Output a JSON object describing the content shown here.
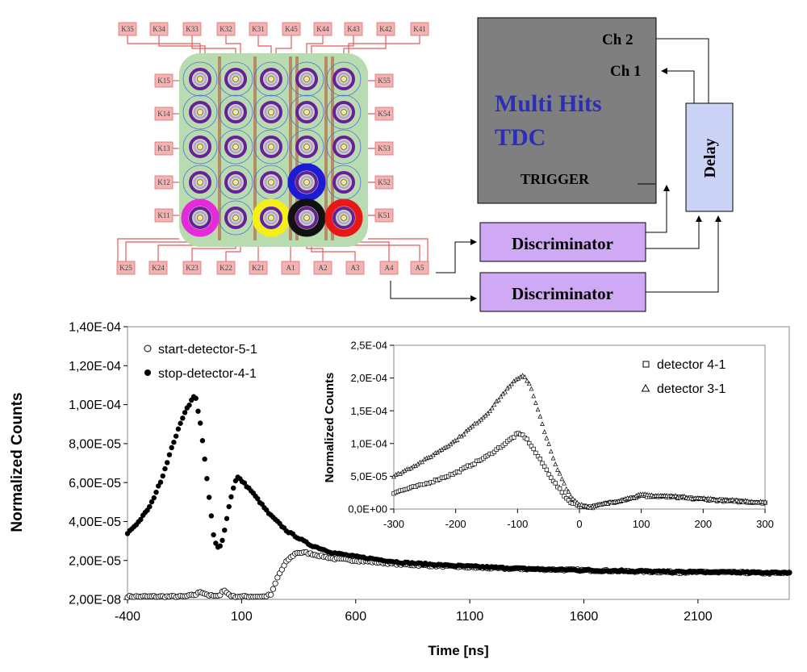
{
  "colors": {
    "pad": "#f2b3b3",
    "pad_stroke": "#e07070",
    "wire": "#e35b5b",
    "board": "#b9dbb0",
    "tdc_fill": "#7f7f7f",
    "tdc_text": "#2b2fb8",
    "disc_fill": "#cfa9f3",
    "delay_fill": "#cbd3f6",
    "magenta": "#e52ad9",
    "yellow": "#f4ef14",
    "black": "#111111",
    "red": "#e81818",
    "blue": "#1c1cd4"
  },
  "detector_array": {
    "top_pads": [
      "K35",
      "K34",
      "K33",
      "K32",
      "K31",
      "K45",
      "K44",
      "K43",
      "K42",
      "K41"
    ],
    "left_pads": [
      "K15",
      "K14",
      "K13",
      "K12",
      "K11"
    ],
    "right_pads": [
      "K55",
      "K54",
      "K53",
      "K52",
      "K51"
    ],
    "bottom_pads": [
      "K25",
      "K24",
      "K23",
      "K22",
      "K21",
      "A1",
      "A2",
      "A3",
      "A4",
      "A5"
    ]
  },
  "electronics": {
    "tdc_title_line1": "Multi Hits",
    "tdc_title_line2": "TDC",
    "ch2": "Ch 2",
    "ch1": "Ch 1",
    "trigger": "TRIGGER",
    "delay": "Delay",
    "discriminator_top": "Discriminator",
    "discriminator_bottom": "Discriminator"
  },
  "chart_data": [
    {
      "type": "scatter",
      "title": "",
      "xlabel": "Time [ns]",
      "ylabel": "Normalized Counts",
      "xlim": [
        -400,
        2500
      ],
      "ylim": [
        2e-08,
        0.00014
      ],
      "xticks": [
        -400,
        100,
        600,
        1100,
        1600,
        2100
      ],
      "xtick_labels": [
        "-400",
        "100",
        "600",
        "1100",
        "1600",
        "2100"
      ],
      "yticks": [
        2e-08,
        2e-05,
        4e-05,
        6e-05,
        8e-05,
        0.0001,
        0.00012,
        0.00014
      ],
      "ytick_labels": [
        "2,00E-08",
        "2,00E-05",
        "4,00E-05",
        "6,00E-05",
        "8,00E-05",
        "1,00E-04",
        "1,20E-04",
        "1,40E-04"
      ],
      "legend_position": "top-left",
      "series": [
        {
          "name": "start-detector-5-1",
          "marker": "open-circle",
          "x": [
            -400,
            -300,
            -200,
            -150,
            -100,
            -80,
            -60,
            -40,
            0,
            20,
            40,
            60,
            80,
            100,
            150,
            200,
            230,
            260,
            300,
            340,
            380,
            420,
            500,
            600,
            800,
            1000,
            1200,
            1400,
            1600,
            1800,
            2000,
            2200,
            2400
          ],
          "y": [
            1.5e-06,
            1.5e-06,
            1.5e-06,
            1.5e-06,
            2.5e-06,
            4e-06,
            3e-06,
            2e-06,
            1.5e-06,
            5e-06,
            3e-06,
            1.5e-06,
            1.5e-06,
            1.5e-06,
            1.5e-06,
            1.5e-06,
            2.5e-06,
            1.2e-05,
            2e-05,
            2.4e-05,
            2.4e-05,
            2.3e-05,
            2.1e-05,
            2e-05,
            1.8e-05,
            1.7e-05,
            1.6e-05,
            1.55e-05,
            1.5e-05,
            1.45e-05,
            1.4e-05,
            1.4e-05,
            1.35e-05
          ]
        },
        {
          "name": "stop-detector-4-1",
          "marker": "filled-circle",
          "x": [
            -400,
            -350,
            -300,
            -250,
            -200,
            -150,
            -110,
            -100,
            -80,
            -60,
            -40,
            -20,
            0,
            20,
            40,
            60,
            80,
            100,
            140,
            180,
            220,
            300,
            400,
            500,
            600,
            800,
            1000,
            1200,
            1400,
            1600,
            1800,
            2000,
            2200,
            2400
          ],
          "y": [
            3.4e-05,
            4e-05,
            4.8e-05,
            6.2e-05,
            8e-05,
            9.6e-05,
            0.000104,
            0.000103,
            9e-05,
            7e-05,
            5e-05,
            3e-05,
            2.6e-05,
            3.2e-05,
            4.5e-05,
            5.6e-05,
            6.3e-05,
            6.1e-05,
            5.6e-05,
            5e-05,
            4.4e-05,
            3.5e-05,
            2.8e-05,
            2.4e-05,
            2.2e-05,
            1.9e-05,
            1.75e-05,
            1.65e-05,
            1.55e-05,
            1.5e-05,
            1.45e-05,
            1.42e-05,
            1.4e-05,
            1.38e-05
          ]
        }
      ]
    },
    {
      "type": "scatter",
      "title": "",
      "xlabel": "",
      "ylabel": "Normalized Counts",
      "xlim": [
        -300,
        300
      ],
      "ylim": [
        0,
        0.00025
      ],
      "xticks": [
        -300,
        -200,
        -100,
        0,
        100,
        200,
        300
      ],
      "xtick_labels": [
        "-300",
        "-200",
        "-100",
        "0",
        "100",
        "200",
        "300"
      ],
      "yticks": [
        0,
        5e-05,
        0.0001,
        0.00015,
        0.0002,
        0.00025
      ],
      "ytick_labels": [
        "0,0E+00",
        "5,0E-05",
        "1,0E-04",
        "1,5E-04",
        "2,0E-04",
        "2,5E-04"
      ],
      "legend_position": "top-right",
      "series": [
        {
          "name": "detector 4-1",
          "marker": "open-square",
          "x": [
            -300,
            -250,
            -200,
            -150,
            -120,
            -100,
            -90,
            -80,
            -60,
            -40,
            -20,
            -10,
            0,
            20,
            50,
            100,
            150,
            200,
            250,
            300
          ],
          "y": [
            2.5e-05,
            3.8e-05,
            5.5e-05,
            8e-05,
            0.0001,
            0.000115,
            0.000112,
            0.0001,
            7e-05,
            4e-05,
            1.5e-05,
            8e-06,
            5e-06,
            3e-06,
            1e-05,
            2e-05,
            1.8e-05,
            1.5e-05,
            1.2e-05,
            1e-05
          ]
        },
        {
          "name": "detector 3-1",
          "marker": "open-triangle",
          "x": [
            -300,
            -250,
            -200,
            -150,
            -120,
            -100,
            -90,
            -80,
            -60,
            -40,
            -20,
            -10,
            0,
            20,
            50,
            100,
            150,
            200,
            250,
            300
          ],
          "y": [
            5e-05,
            7.5e-05,
            0.000105,
            0.000145,
            0.00018,
            0.0002,
            0.000205,
            0.00019,
            0.00013,
            7e-05,
            3e-05,
            1.5e-05,
            8e-06,
            3e-06,
            1e-05,
            2.2e-05,
            2e-05,
            1.6e-05,
            1.3e-05,
            1e-05
          ]
        }
      ]
    }
  ]
}
